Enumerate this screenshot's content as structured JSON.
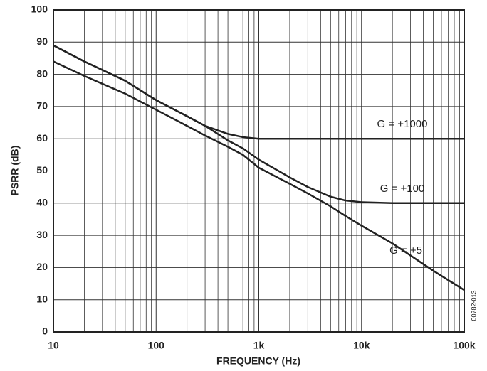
{
  "chart_data": {
    "type": "line",
    "xlabel": "FREQUENCY (Hz)",
    "ylabel": "PSRR (dB)",
    "figure_id": "00782-013",
    "x": [
      10,
      20,
      50,
      100,
      200,
      300,
      500,
      700,
      1000,
      2000,
      3000,
      5000,
      7000,
      10000,
      20000,
      50000,
      100000
    ],
    "series": [
      {
        "name": "G = +1000",
        "color": "#222222",
        "values": [
          89,
          84,
          78,
          72,
          67,
          64,
          61.5,
          60.5,
          60,
          60,
          60,
          60,
          60,
          60,
          60,
          60,
          60
        ]
      },
      {
        "name": "G = +100",
        "color": "#222222",
        "values": [
          89,
          84,
          78,
          72,
          67,
          64,
          59.5,
          57,
          53.5,
          48,
          45,
          42,
          40.8,
          40.3,
          40,
          40,
          40
        ]
      },
      {
        "name": "G = +5",
        "color": "#222222",
        "values": [
          84,
          79.5,
          74,
          69,
          64,
          61,
          57.5,
          55,
          51,
          46,
          43,
          39,
          36,
          33,
          27.5,
          19,
          13
        ]
      }
    ],
    "xscale": "log",
    "xlim": [
      10,
      100000
    ],
    "xticks": [
      10,
      100,
      {
        "value": 1000,
        "label": "1k"
      },
      {
        "value": 10000,
        "label": "10k"
      },
      {
        "value": 100000,
        "label": "100k"
      }
    ],
    "ylim": [
      0,
      100
    ],
    "yticks": [
      0,
      10,
      20,
      30,
      40,
      50,
      60,
      70,
      80,
      90,
      100
    ],
    "grid": true,
    "minor_grid": true
  }
}
